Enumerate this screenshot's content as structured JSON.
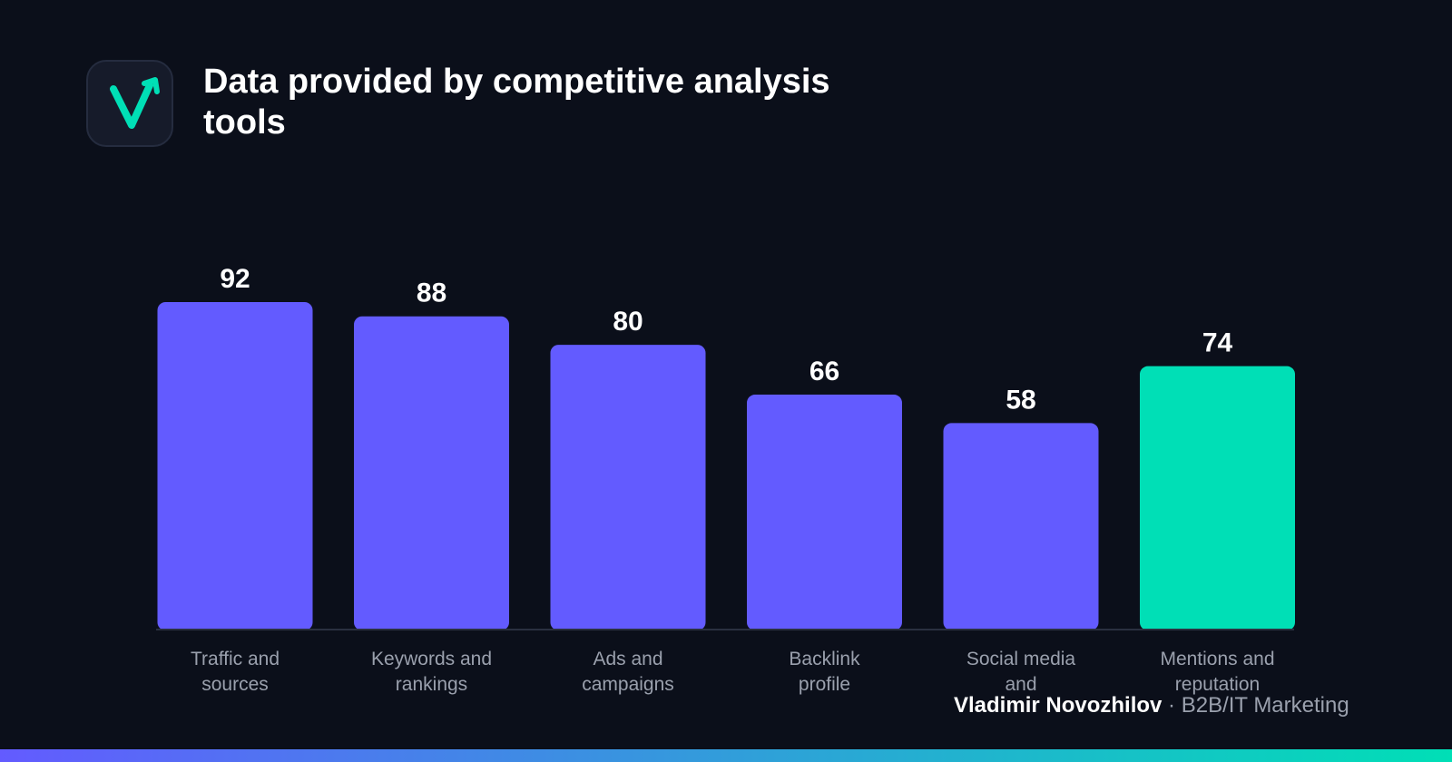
{
  "header": {
    "title": "Data provided by competitive analysis tools",
    "logo_icon": "checkmark-arrow-icon"
  },
  "credit": {
    "name": "Vladimir Novozhilov",
    "separator": "·",
    "role": "B2B/IT Marketing"
  },
  "colors": {
    "background": "#0b0f1a",
    "bar_primary": "#635bff",
    "bar_highlight": "#00dfb6",
    "baseline": "#2a3040",
    "gradient_start": "#635bff",
    "gradient_end": "#00dfb6"
  },
  "chart_data": {
    "type": "bar",
    "categories": [
      [
        "Traffic and",
        "sources"
      ],
      [
        "Keywords and",
        "rankings"
      ],
      [
        "Ads and",
        "campaigns"
      ],
      [
        "Backlink",
        "profile"
      ],
      [
        "Social media",
        "and"
      ],
      [
        "Mentions and",
        "reputation"
      ]
    ],
    "values": [
      92,
      88,
      80,
      66,
      58,
      74
    ],
    "data_labels": [
      "92",
      "88",
      "80",
      "66",
      "58",
      "74"
    ],
    "highlight_index": 5,
    "title": "Data provided by competitive analysis tools",
    "xlabel": "",
    "ylabel": "",
    "ylim": [
      0,
      92
    ],
    "grid": false,
    "legend": "none"
  }
}
